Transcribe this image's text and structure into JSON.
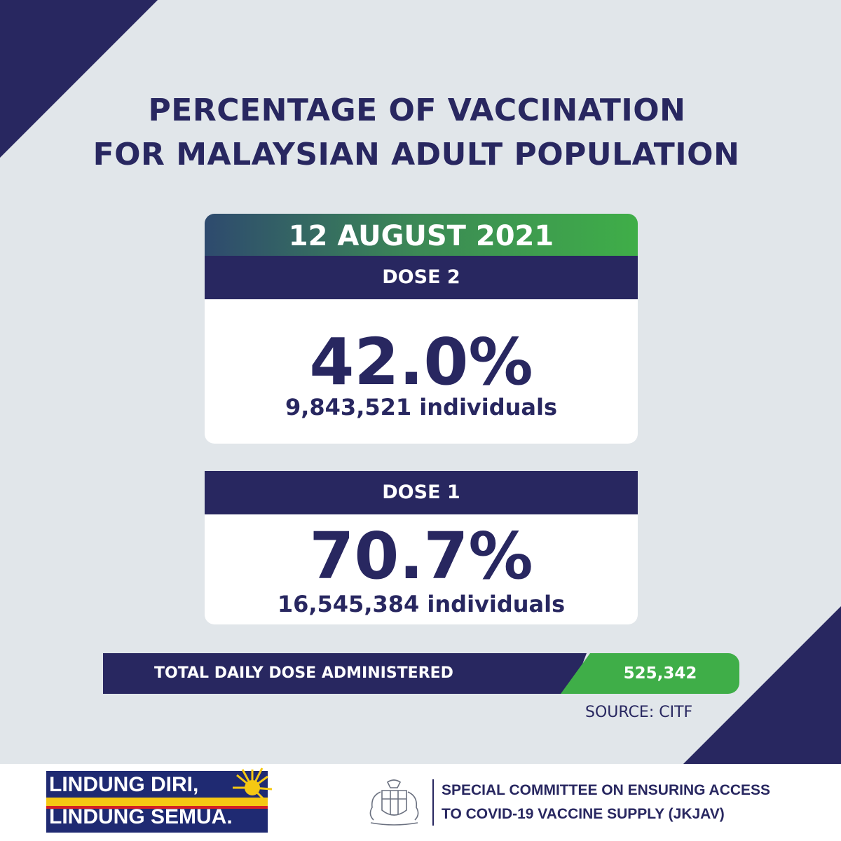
{
  "title": {
    "line1": "PERCENTAGE OF VACCINATION",
    "line2": "FOR MALAYSIAN ADULT POPULATION"
  },
  "date": "12 AUGUST 2021",
  "dose2": {
    "label": "DOSE 2",
    "percent": "42.0%",
    "individuals": "9,843,521 individuals"
  },
  "dose1": {
    "label": "DOSE 1",
    "percent": "70.7%",
    "individuals": "16,545,384  individuals"
  },
  "total": {
    "label": "TOTAL DAILY DOSE ADMINISTERED",
    "value": "525,342"
  },
  "source": "SOURCE: CITF",
  "slogan": {
    "line1": "LINDUNG DIRI,",
    "line2": "LINDUNG SEMUA."
  },
  "committee": {
    "line1": "SPECIAL COMMITTEE ON ENSURING ACCESS",
    "line2": "TO COVID-19 VACCINE SUPPLY (JKJAV)"
  },
  "colors": {
    "navy": "#282760",
    "green": "#3fae48",
    "background": "#e1e6ea"
  },
  "icons": [
    "sun-icon",
    "coat-of-arms-icon"
  ]
}
